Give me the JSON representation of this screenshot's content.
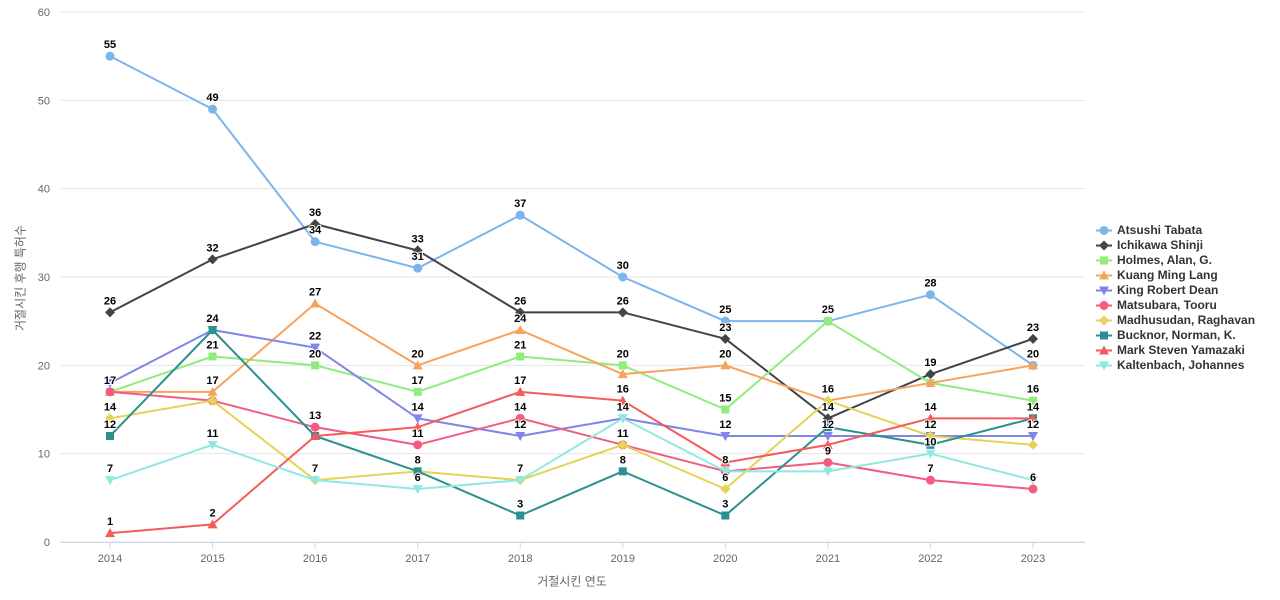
{
  "chart_data": {
    "type": "line",
    "x": [
      "2014",
      "2015",
      "2016",
      "2017",
      "2018",
      "2019",
      "2020",
      "2021",
      "2022",
      "2023"
    ],
    "xlabel": "거절시킨 연도",
    "ylabel": "거절시킨 후행 특허수",
    "ylim": [
      0,
      60
    ],
    "y_ticks": [
      0,
      10,
      20,
      30,
      40,
      50,
      60
    ],
    "grid": "horizontal",
    "legend_position": "right",
    "background_color": "#ffffff",
    "grid_color": "#e6e6e6",
    "axis_line_color": "#ccd6eb",
    "axis_label_color": "#666666",
    "data_label_color": "#000000",
    "series": [
      {
        "name": "Atsushi Tabata",
        "color": "#7cb5ec",
        "marker": "circle",
        "values": [
          55,
          49,
          34,
          31,
          37,
          30,
          25,
          25,
          28,
          20
        ]
      },
      {
        "name": "Ichikawa Shinji",
        "color": "#434348",
        "marker": "diamond",
        "values": [
          26,
          32,
          36,
          33,
          26,
          26,
          23,
          14,
          19,
          23
        ]
      },
      {
        "name": "Holmes, Alan, G.",
        "color": "#90ed7d",
        "marker": "square",
        "values": [
          17,
          21,
          20,
          17,
          21,
          20,
          15,
          25,
          18,
          16
        ]
      },
      {
        "name": "Kuang Ming Lang",
        "color": "#f7a35c",
        "marker": "triangle",
        "values": [
          17,
          17,
          27,
          20,
          24,
          19,
          20,
          16,
          18,
          20
        ]
      },
      {
        "name": "King Robert Dean",
        "color": "#8085e9",
        "marker": "triangle-down",
        "values": [
          18,
          24,
          22,
          14,
          12,
          14,
          12,
          12,
          12,
          12
        ]
      },
      {
        "name": "Matsubara, Tooru",
        "color": "#f15c80",
        "marker": "circle",
        "values": [
          17,
          16,
          13,
          11,
          14,
          11,
          8,
          9,
          7,
          6
        ]
      },
      {
        "name": "Madhusudan, Raghavan",
        "color": "#e4d354",
        "marker": "diamond",
        "values": [
          14,
          16,
          7,
          8,
          7,
          11,
          6,
          16,
          12,
          11
        ]
      },
      {
        "name": "Bucknor, Norman, K.",
        "color": "#2b908f",
        "marker": "square",
        "values": [
          12,
          24,
          12,
          8,
          3,
          8,
          3,
          13,
          11,
          14
        ]
      },
      {
        "name": "Mark Steven Yamazaki",
        "color": "#f45b5b",
        "marker": "triangle",
        "values": [
          1,
          2,
          12,
          13,
          17,
          16,
          9,
          11,
          14,
          14
        ]
      },
      {
        "name": "Kaltenbach, Johannes",
        "color": "#91e8e1",
        "marker": "triangle-down",
        "values": [
          7,
          11,
          7,
          6,
          7,
          14,
          8,
          8,
          10,
          7
        ]
      }
    ]
  }
}
